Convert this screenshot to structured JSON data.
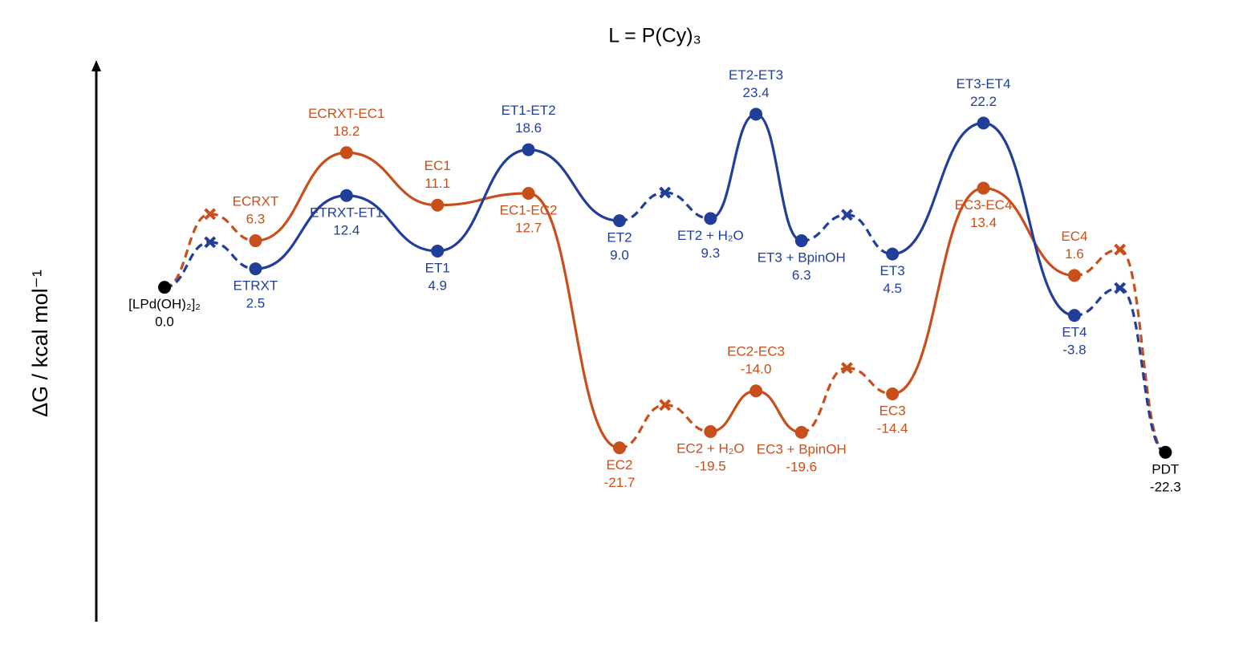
{
  "chart_data": {
    "type": "energy-profile",
    "title": "L = P(Cy)₃",
    "ylabel": "ΔG / kcal mol⁻¹",
    "xlim": [
      -0.75,
      11.5
    ],
    "ylim": [
      -45.2,
      30.7
    ],
    "endpoints": {
      "color": "#000000",
      "x": [
        0,
        11
      ],
      "values": [
        0,
        -22.3
      ],
      "labels": [
        "[LPd(OH)₂]₂",
        "PDT"
      ],
      "value_labels": [
        "0.0",
        "-22.3"
      ]
    },
    "series": [
      {
        "color": "#c84f1c",
        "x": [
          0.5,
          1,
          2,
          3,
          4,
          5,
          5.5,
          6,
          6.5,
          7,
          7.5,
          8,
          9,
          10,
          10.5
        ],
        "values": [
          9.9,
          6.3,
          18.2,
          11.1,
          12.7,
          -21.7,
          -15.9,
          -19.5,
          -14.0,
          -19.6,
          -10.9,
          -14.4,
          13.4,
          1.6,
          5.1
        ],
        "labels": [
          null,
          "ECRXT",
          "ECRXT-EC1",
          "EC1",
          "EC1-EC2",
          "EC2",
          null,
          "EC2 + H₂O",
          "EC2-EC3",
          "EC3 + BpinOH",
          null,
          "EC3",
          "EC3-EC4",
          "EC4",
          null
        ],
        "value_labels": [
          null,
          "6.3",
          "18.2",
          "11.1",
          "12.7",
          "-21.7",
          null,
          "-19.5",
          "-14.0",
          "-19.6",
          null,
          "-14.4",
          "13.4",
          "1.6",
          null
        ],
        "label_side": [
          null,
          "above",
          "above",
          "above",
          "below",
          "below",
          null,
          "below",
          "above",
          "below",
          null,
          "below",
          "below",
          "above",
          null
        ]
      },
      {
        "color": "#213f99",
        "x": [
          0.5,
          1,
          2,
          3,
          4,
          5,
          5.5,
          6,
          6.5,
          7,
          7.5,
          8,
          9,
          10,
          10.5
        ],
        "values": [
          6.1,
          2.5,
          12.4,
          4.9,
          18.6,
          9.0,
          12.8,
          9.3,
          23.4,
          6.3,
          9.8,
          4.5,
          22.2,
          -3.8,
          -0.1
        ],
        "labels": [
          null,
          "ETRXT",
          "ETRXT-ET1",
          "ET1",
          "ET1-ET2",
          "ET2",
          null,
          "ET2 + H₂O",
          "ET2-ET3",
          "ET3 + BpinOH",
          null,
          "ET3",
          "ET3-ET4",
          "ET4",
          null
        ],
        "value_labels": [
          null,
          "2.5",
          "12.4",
          "4.9",
          "18.6",
          "9.0",
          null,
          "9.3",
          "23.4",
          "6.3",
          null,
          "4.5",
          "22.2",
          "-3.8",
          null
        ],
        "label_side": [
          null,
          "below",
          "below",
          "below",
          "above",
          "below",
          null,
          "below",
          "above",
          "below",
          null,
          "below",
          "above",
          "below",
          null
        ]
      }
    ]
  }
}
